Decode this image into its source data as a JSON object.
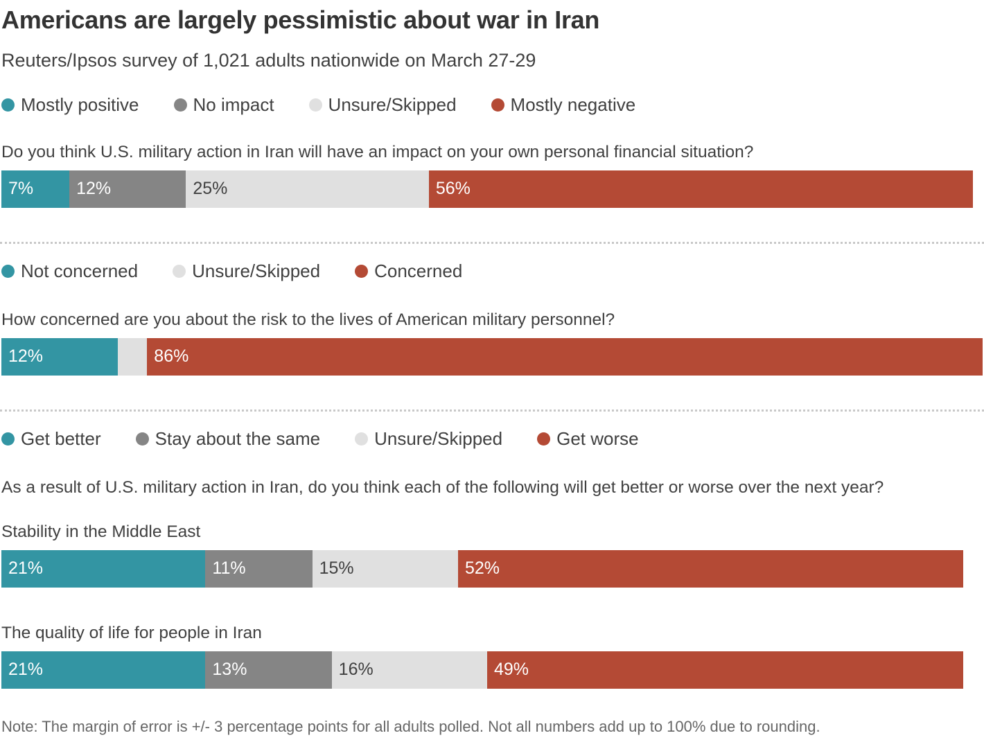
{
  "title": "Americans are largely pessimistic about war in Iran",
  "subtitle": "Reuters/Ipsos survey of 1,021 adults nationwide on March 27-29",
  "colors": {
    "positive": "#3395a3",
    "neutral": "#858585",
    "unsure": "#e0e0e0",
    "negative": "#b44a35"
  },
  "note": "Note:  The margin of error is +/- 3 percentage points for all adults polled. Not all numbers add up to 100% due to rounding.",
  "chart_data": [
    {
      "type": "bar",
      "stacked": true,
      "orientation": "horizontal",
      "title": "Do you think U.S. military action in Iran will have an impact on your own personal financial situation?",
      "legend": [
        "Mostly positive",
        "No impact",
        "Unsure/Skipped",
        "Mostly negative"
      ],
      "legend_labels": [
        "Mostly positive",
        "No impact",
        "Unsure/Skipped",
        "Mostly negative"
      ],
      "bars": [
        {
          "label": "",
          "values": [
            7,
            12,
            25,
            56
          ],
          "labels": [
            "7%",
            "12%",
            "25%",
            "56%"
          ]
        }
      ]
    },
    {
      "type": "bar",
      "stacked": true,
      "orientation": "horizontal",
      "title": "How concerned are you about the risk to the lives of American military personnel?",
      "legend": [
        "Not concerned",
        "Unsure/Skipped",
        "Concerned"
      ],
      "bars": [
        {
          "label": "",
          "values": [
            12,
            3,
            86
          ],
          "labels": [
            "12%",
            "",
            "86%"
          ]
        }
      ]
    },
    {
      "type": "bar",
      "stacked": true,
      "orientation": "horizontal",
      "title": "As a result of U.S. military action in Iran, do you think each of the following will get better or worse over the next year?",
      "legend": [
        "Get better",
        "Stay about the same",
        "Unsure/Skipped",
        "Get worse"
      ],
      "bars": [
        {
          "label": "Stability in the Middle East",
          "values": [
            21,
            11,
            15,
            52
          ],
          "labels": [
            "21%",
            "11%",
            "15%",
            "52%"
          ]
        },
        {
          "label": "The quality of life for people in Iran",
          "values": [
            21,
            13,
            16,
            49
          ],
          "labels": [
            "21%",
            "13%",
            "16%",
            "49%"
          ]
        }
      ]
    }
  ]
}
